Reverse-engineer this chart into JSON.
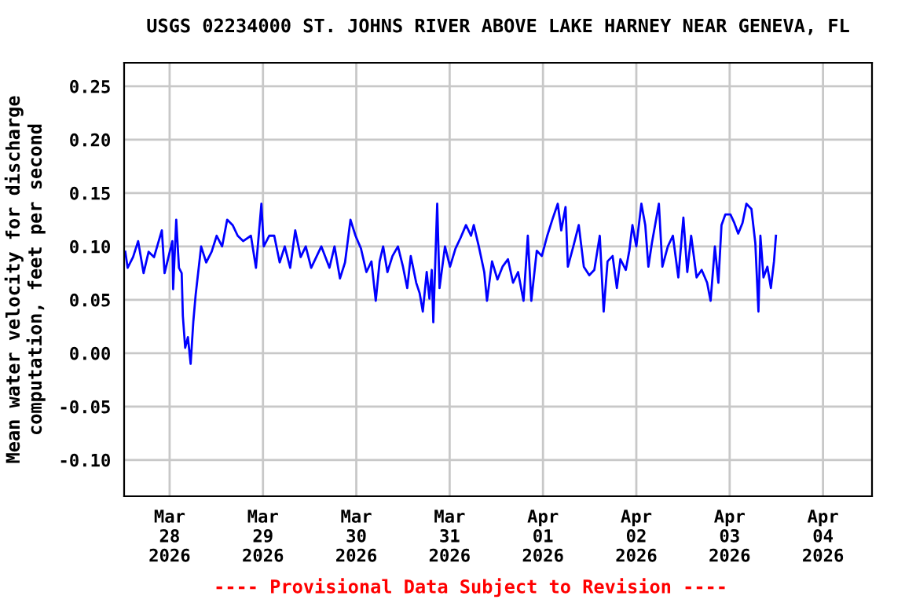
{
  "chart_data": {
    "type": "line",
    "title": "USGS 02234000 ST. JOHNS RIVER ABOVE LAKE HARNEY NEAR GENEVA, FL",
    "ylabel": "Mean water velocity for discharge\ncomputation, feet per second",
    "annotations": [
      "---- Provisional Data Subject to Revision ----"
    ],
    "x": [
      "2026-03-27T12:36",
      "2026-03-27T13:12",
      "2026-03-27T14:36",
      "2026-03-27T15:54",
      "2026-03-27T17:18",
      "2026-03-27T18:36",
      "2026-03-27T20:00",
      "2026-03-27T22:00",
      "2026-03-27T22:42",
      "2026-03-28T00:42",
      "2026-03-28T00:54",
      "2026-03-28T01:42",
      "2026-03-28T02:24",
      "2026-03-28T03:06",
      "2026-03-28T03:24",
      "2026-03-28T04:00",
      "2026-03-28T04:42",
      "2026-03-28T05:24",
      "2026-03-28T06:06",
      "2026-03-28T06:42",
      "2026-03-28T08:06",
      "2026-03-28T09:24",
      "2026-03-28T10:48",
      "2026-03-28T12:06",
      "2026-03-28T13:30",
      "2026-03-28T14:48",
      "2026-03-28T16:12",
      "2026-03-28T17:30",
      "2026-03-28T18:54",
      "2026-03-28T20:54",
      "2026-03-28T22:12",
      "2026-03-28T23:36",
      "2026-03-29T00:12",
      "2026-03-29T01:36",
      "2026-03-29T02:54",
      "2026-03-29T04:18",
      "2026-03-29T05:36",
      "2026-03-29T07:00",
      "2026-03-29T08:18",
      "2026-03-29T09:42",
      "2026-03-29T11:00",
      "2026-03-29T12:24",
      "2026-03-29T15:00",
      "2026-03-29T17:06",
      "2026-03-29T18:24",
      "2026-03-29T19:48",
      "2026-03-29T21:06",
      "2026-03-29T22:30",
      "2026-03-29T23:48",
      "2026-03-30T01:12",
      "2026-03-30T02:36",
      "2026-03-30T03:54",
      "2026-03-30T05:00",
      "2026-03-30T06:00",
      "2026-03-30T06:54",
      "2026-03-30T08:00",
      "2026-03-30T09:18",
      "2026-03-30T10:42",
      "2026-03-30T12:00",
      "2026-03-30T13:06",
      "2026-03-30T14:00",
      "2026-03-30T15:24",
      "2026-03-30T16:18",
      "2026-03-30T17:06",
      "2026-03-30T18:06",
      "2026-03-30T18:48",
      "2026-03-30T19:24",
      "2026-03-30T19:48",
      "2026-03-30T20:48",
      "2026-03-30T21:24",
      "2026-03-30T22:48",
      "2026-03-31T00:06",
      "2026-03-31T01:30",
      "2026-03-31T02:48",
      "2026-03-31T04:12",
      "2026-03-31T05:30",
      "2026-03-31T06:12",
      "2026-03-31T07:30",
      "2026-03-31T08:54",
      "2026-03-31T09:36",
      "2026-03-31T10:54",
      "2026-03-31T12:18",
      "2026-03-31T13:36",
      "2026-03-31T15:00",
      "2026-03-31T16:18",
      "2026-03-31T17:36",
      "2026-03-31T19:00",
      "2026-03-31T20:06",
      "2026-03-31T21:00",
      "2026-03-31T22:24",
      "2026-03-31T23:42",
      "2026-04-01T01:06",
      "2026-04-01T02:24",
      "2026-04-01T03:48",
      "2026-04-01T04:42",
      "2026-04-01T05:48",
      "2026-04-01T06:24",
      "2026-04-01T07:48",
      "2026-04-01T09:12",
      "2026-04-01T10:30",
      "2026-04-01T11:54",
      "2026-04-01T13:12",
      "2026-04-01T14:36",
      "2026-04-01T15:36",
      "2026-04-01T16:36",
      "2026-04-01T17:54",
      "2026-04-01T19:00",
      "2026-04-01T19:54",
      "2026-04-01T21:18",
      "2026-04-01T22:12",
      "2026-04-01T23:00",
      "2026-04-02T00:00",
      "2026-04-02T01:18",
      "2026-04-02T02:18",
      "2026-04-02T03:06",
      "2026-04-02T04:00",
      "2026-04-02T05:48",
      "2026-04-02T06:42",
      "2026-04-02T08:06",
      "2026-04-02T09:24",
      "2026-04-02T10:48",
      "2026-04-02T12:06",
      "2026-04-02T13:06",
      "2026-04-02T14:06",
      "2026-04-02T15:30",
      "2026-04-02T16:48",
      "2026-04-02T18:12",
      "2026-04-02T19:06",
      "2026-04-02T20:12",
      "2026-04-02T21:06",
      "2026-04-02T21:54",
      "2026-04-02T22:54",
      "2026-04-03T00:12",
      "2026-04-03T01:12",
      "2026-04-03T02:12",
      "2026-04-03T03:18",
      "2026-04-03T04:18",
      "2026-04-03T05:36",
      "2026-04-03T06:36",
      "2026-04-03T07:24",
      "2026-04-03T07:54",
      "2026-04-03T08:42",
      "2026-04-03T09:42",
      "2026-04-03T10:36",
      "2026-04-03T11:24",
      "2026-04-03T11:54"
    ],
    "series": [
      {
        "color": "#0000ff",
        "values": [
          0.095,
          0.08,
          0.09,
          0.105,
          0.075,
          0.095,
          0.09,
          0.115,
          0.075,
          0.105,
          0.06,
          0.125,
          0.08,
          0.075,
          0.035,
          0.005,
          0.015,
          -0.01,
          0.03,
          0.055,
          0.1,
          0.085,
          0.095,
          0.11,
          0.1,
          0.125,
          0.12,
          0.11,
          0.105,
          0.11,
          0.08,
          0.14,
          0.1,
          0.11,
          0.11,
          0.085,
          0.1,
          0.08,
          0.115,
          0.09,
          0.1,
          0.08,
          0.1,
          0.08,
          0.1,
          0.07,
          0.085,
          0.125,
          0.11,
          0.098,
          0.076,
          0.086,
          0.049,
          0.086,
          0.1,
          0.076,
          0.091,
          0.1,
          0.081,
          0.061,
          0.091,
          0.066,
          0.056,
          0.039,
          0.076,
          0.051,
          0.078,
          0.029,
          0.14,
          0.061,
          0.1,
          0.081,
          0.098,
          0.108,
          0.12,
          0.11,
          0.12,
          0.1,
          0.076,
          0.049,
          0.086,
          0.069,
          0.081,
          0.088,
          0.066,
          0.076,
          0.049,
          0.11,
          0.049,
          0.096,
          0.091,
          0.11,
          0.125,
          0.14,
          0.115,
          0.137,
          0.081,
          0.1,
          0.12,
          0.081,
          0.073,
          0.078,
          0.11,
          0.039,
          0.086,
          0.091,
          0.061,
          0.088,
          0.078,
          0.096,
          0.12,
          0.1,
          0.14,
          0.12,
          0.081,
          0.103,
          0.14,
          0.081,
          0.1,
          0.11,
          0.071,
          0.127,
          0.076,
          0.11,
          0.071,
          0.078,
          0.066,
          0.049,
          0.1,
          0.066,
          0.12,
          0.13,
          0.13,
          0.122,
          0.112,
          0.122,
          0.14,
          0.135,
          0.103,
          0.039,
          0.11,
          0.071,
          0.081,
          0.061,
          0.086,
          0.11
        ]
      }
    ],
    "xlim": [
      "2026-03-27T12:18",
      "2026-04-04T12:36"
    ],
    "xticks": [
      {
        "value": "2026-03-28",
        "label": "Mar\n28\n2026"
      },
      {
        "value": "2026-03-29",
        "label": "Mar\n29\n2026"
      },
      {
        "value": "2026-03-30",
        "label": "Mar\n30\n2026"
      },
      {
        "value": "2026-03-31",
        "label": "Mar\n31\n2026"
      },
      {
        "value": "2026-04-01",
        "label": "Apr\n01\n2026"
      },
      {
        "value": "2026-04-02",
        "label": "Apr\n02\n2026"
      },
      {
        "value": "2026-04-03",
        "label": "Apr\n03\n2026"
      },
      {
        "value": "2026-04-04",
        "label": "Apr\n04\n2026"
      }
    ],
    "ylim": [
      -0.134,
      0.272
    ],
    "yticks": [
      {
        "value": -0.1,
        "label": "-0.10"
      },
      {
        "value": -0.05,
        "label": "-0.05"
      },
      {
        "value": 0,
        "label": "0.00"
      },
      {
        "value": 0.05,
        "label": "0.05"
      },
      {
        "value": 0.1,
        "label": "0.10"
      },
      {
        "value": 0.15,
        "label": "0.15"
      },
      {
        "value": 0.2,
        "label": "0.20"
      },
      {
        "value": 0.25,
        "label": "0.25"
      }
    ],
    "grid": true,
    "legend": false,
    "line_style": "solid",
    "marker": "none"
  }
}
